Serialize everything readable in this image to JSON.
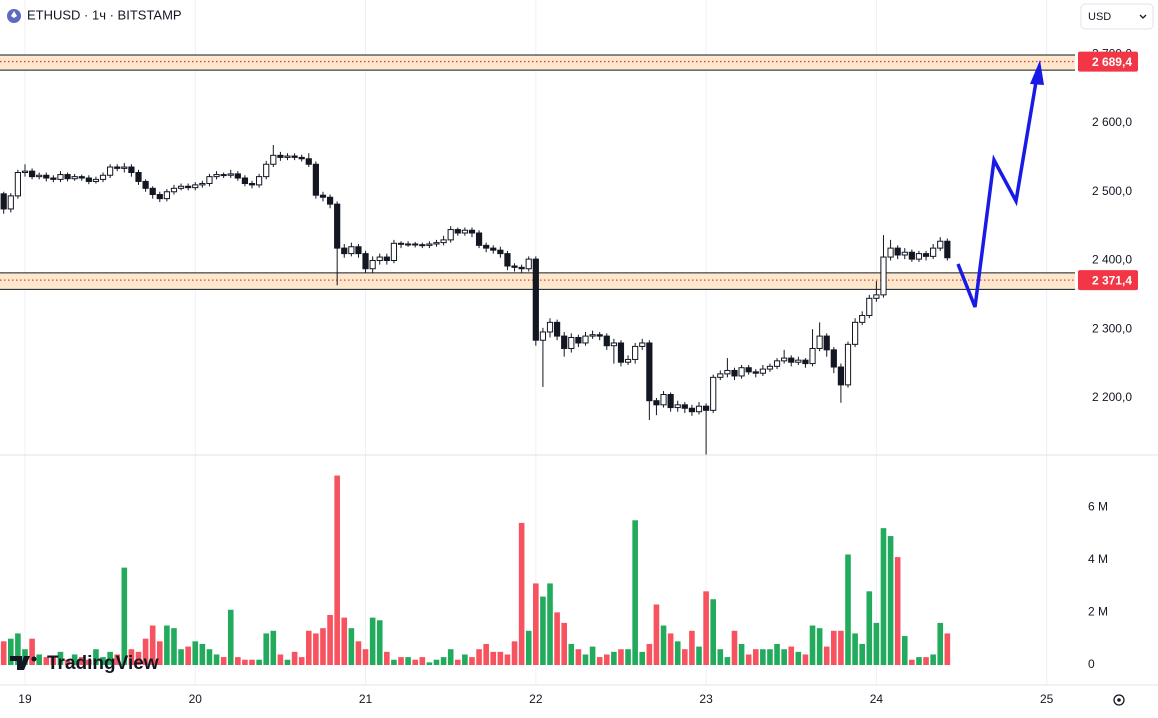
{
  "chart_data": {
    "type": "candlestick",
    "title": "ETHUSD · 1ч · BITSTAMP",
    "currency": "USD",
    "brand": "TradingView",
    "categories": [
      null,
      null,
      null,
      "19",
      null,
      null,
      null,
      null,
      null,
      null,
      null,
      null,
      null,
      null,
      null,
      null,
      null,
      null,
      null,
      null,
      null,
      null,
      null,
      null,
      null,
      null,
      null,
      "20",
      null,
      null,
      null,
      null,
      null,
      null,
      null,
      null,
      null,
      null,
      null,
      null,
      null,
      null,
      null,
      null,
      null,
      null,
      null,
      null,
      null,
      null,
      null,
      "21",
      null,
      null,
      null,
      null,
      null,
      null,
      null,
      null,
      null,
      null,
      null,
      null,
      null,
      null,
      null,
      null,
      null,
      null,
      null,
      null,
      null,
      null,
      null,
      "22",
      null,
      null,
      null,
      null,
      null,
      null,
      null,
      null,
      null,
      null,
      null,
      null,
      null,
      null,
      null,
      null,
      null,
      null,
      null,
      null,
      null,
      null,
      null,
      "23",
      null,
      null,
      null,
      null,
      null,
      null,
      null,
      null,
      null,
      null,
      null,
      null,
      null,
      null,
      null,
      null,
      null,
      null,
      null,
      null,
      null,
      null,
      null,
      "24",
      null,
      null,
      null,
      null,
      null,
      null,
      null,
      null,
      null,
      null,
      null,
      null,
      null,
      null,
      null,
      null,
      null,
      null,
      null,
      null,
      null,
      null,
      null,
      "25"
    ],
    "open": [
      2497,
      2475,
      2494,
      2528,
      2530,
      2522,
      2524,
      2520,
      2518,
      2525,
      2519,
      2522,
      2520,
      2515,
      2518,
      2524,
      2536,
      2534,
      2536,
      2528,
      2515,
      2505,
      2496,
      2490,
      2500,
      2505,
      2508,
      2506,
      2510,
      2512,
      2522,
      2525,
      2524,
      2526,
      2520,
      2512,
      2510,
      2522,
      2540,
      2553,
      2550,
      2552,
      2550,
      2548,
      2540,
      2495,
      2492,
      2482,
      2418,
      2410,
      2420,
      2410,
      2388,
      2400,
      2405,
      2400,
      2425,
      2424,
      2424,
      2423,
      2422,
      2424,
      2426,
      2430,
      2445,
      2440,
      2444,
      2440,
      2422,
      2418,
      2415,
      2410,
      2392,
      2390,
      2388,
      2402,
      2284,
      2296,
      2310,
      2290,
      2272,
      2288,
      2280,
      2290,
      2292,
      2290,
      2276,
      2280,
      2252,
      2256,
      2275,
      2280,
      2196,
      2190,
      2205,
      2186,
      2190,
      2185,
      2180,
      2188,
      2182,
      2230,
      2235,
      2240,
      2232,
      2244,
      2238,
      2236,
      2242,
      2246,
      2254,
      2258,
      2252,
      2255,
      2250,
      2272,
      2290,
      2270,
      2245,
      2219,
      2278,
      2310,
      2320,
      2345,
      2350,
      2405,
      2418,
      2408,
      2412,
      2402,
      2410,
      2406,
      2418,
      2428,
      null,
      null,
      null,
      null,
      null,
      null,
      null,
      null,
      null,
      null,
      null,
      null,
      null,
      null
    ],
    "high": [
      2500,
      2498,
      2532,
      2540,
      2534,
      2528,
      2528,
      2524,
      2530,
      2528,
      2526,
      2525,
      2524,
      2522,
      2528,
      2540,
      2540,
      2542,
      2540,
      2532,
      2518,
      2508,
      2500,
      2504,
      2510,
      2512,
      2512,
      2514,
      2516,
      2526,
      2530,
      2528,
      2532,
      2530,
      2524,
      2516,
      2526,
      2545,
      2568,
      2558,
      2556,
      2556,
      2554,
      2556,
      2544,
      2500,
      2496,
      2486,
      2424,
      2426,
      2424,
      2414,
      2406,
      2410,
      2410,
      2430,
      2428,
      2428,
      2427,
      2426,
      2428,
      2430,
      2436,
      2450,
      2448,
      2448,
      2448,
      2444,
      2426,
      2422,
      2420,
      2414,
      2396,
      2394,
      2406,
      2406,
      2302,
      2316,
      2314,
      2296,
      2294,
      2292,
      2296,
      2298,
      2296,
      2294,
      2286,
      2284,
      2262,
      2280,
      2286,
      2284,
      2200,
      2210,
      2208,
      2196,
      2194,
      2190,
      2194,
      2192,
      2234,
      2240,
      2258,
      2244,
      2248,
      2248,
      2242,
      2248,
      2250,
      2258,
      2270,
      2262,
      2260,
      2258,
      2300,
      2310,
      2294,
      2274,
      2250,
      2282,
      2316,
      2326,
      2350,
      2370,
      2437,
      2430,
      2422,
      2418,
      2416,
      2414,
      2414,
      2424,
      2434,
      2432,
      null,
      null,
      null,
      null,
      null,
      null,
      null,
      null,
      null,
      null,
      null,
      null,
      null,
      null
    ],
    "low": [
      2468,
      2470,
      2490,
      2522,
      2518,
      2518,
      2515,
      2514,
      2514,
      2515,
      2516,
      2516,
      2511,
      2512,
      2514,
      2520,
      2530,
      2528,
      2522,
      2510,
      2500,
      2490,
      2485,
      2486,
      2496,
      2502,
      2502,
      2502,
      2506,
      2508,
      2518,
      2520,
      2520,
      2516,
      2508,
      2505,
      2506,
      2518,
      2536,
      2545,
      2546,
      2546,
      2544,
      2536,
      2490,
      2486,
      2476,
      2364,
      2404,
      2406,
      2404,
      2382,
      2382,
      2394,
      2394,
      2396,
      2418,
      2420,
      2419,
      2418,
      2418,
      2420,
      2422,
      2426,
      2436,
      2436,
      2434,
      2418,
      2412,
      2410,
      2404,
      2386,
      2384,
      2382,
      2384,
      2276,
      2216,
      2288,
      2284,
      2260,
      2266,
      2274,
      2276,
      2286,
      2284,
      2270,
      2250,
      2246,
      2248,
      2250,
      2270,
      2168,
      2175,
      2186,
      2180,
      2180,
      2178,
      2174,
      2176,
      2117,
      2178,
      2226,
      2230,
      2226,
      2228,
      2234,
      2230,
      2232,
      2238,
      2242,
      2250,
      2246,
      2248,
      2244,
      2246,
      2268,
      2260,
      2236,
      2193,
      2215,
      2274,
      2306,
      2316,
      2340,
      2346,
      2400,
      2402,
      2402,
      2398,
      2398,
      2400,
      2402,
      2414,
      2400,
      null,
      null,
      null,
      null,
      null,
      null,
      null,
      null,
      null,
      null,
      null,
      null,
      null,
      null
    ],
    "close": [
      2475,
      2494,
      2528,
      2530,
      2522,
      2524,
      2520,
      2518,
      2525,
      2519,
      2522,
      2520,
      2515,
      2518,
      2524,
      2536,
      2534,
      2536,
      2528,
      2515,
      2505,
      2496,
      2490,
      2500,
      2505,
      2508,
      2506,
      2510,
      2512,
      2522,
      2525,
      2524,
      2526,
      2520,
      2512,
      2510,
      2522,
      2540,
      2553,
      2550,
      2552,
      2550,
      2548,
      2540,
      2495,
      2492,
      2482,
      2418,
      2410,
      2420,
      2410,
      2388,
      2400,
      2405,
      2400,
      2425,
      2424,
      2424,
      2423,
      2422,
      2424,
      2426,
      2430,
      2445,
      2440,
      2444,
      2440,
      2422,
      2418,
      2415,
      2410,
      2392,
      2390,
      2388,
      2402,
      2284,
      2296,
      2310,
      2290,
      2272,
      2288,
      2280,
      2290,
      2292,
      2290,
      2276,
      2280,
      2252,
      2256,
      2275,
      2280,
      2196,
      2190,
      2205,
      2186,
      2190,
      2185,
      2180,
      2188,
      2182,
      2230,
      2235,
      2240,
      2232,
      2244,
      2238,
      2236,
      2242,
      2246,
      2254,
      2258,
      2252,
      2255,
      2250,
      2272,
      2290,
      2270,
      2245,
      2219,
      2278,
      2310,
      2320,
      2345,
      2350,
      2405,
      2418,
      2408,
      2412,
      2402,
      2410,
      2406,
      2418,
      2428,
      2404,
      null,
      null,
      null,
      null,
      null,
      null,
      null,
      null,
      null,
      null,
      null,
      null,
      null,
      null
    ],
    "volume": [
      0.9,
      1.0,
      1.2,
      0.6,
      1.0,
      0.4,
      0.3,
      0.3,
      0.5,
      0.2,
      0.4,
      0.3,
      0.2,
      0.6,
      0.3,
      0.5,
      0.4,
      3.7,
      0.6,
      0.5,
      1.0,
      1.5,
      0.9,
      1.5,
      1.4,
      0.6,
      0.7,
      0.9,
      0.8,
      0.6,
      0.4,
      0.3,
      2.1,
      0.3,
      0.2,
      0.2,
      0.2,
      1.2,
      1.3,
      0.4,
      0.2,
      0.5,
      0.3,
      1.3,
      1.2,
      1.4,
      1.9,
      7.2,
      1.8,
      1.4,
      0.9,
      0.6,
      1.8,
      1.7,
      0.5,
      0.2,
      0.3,
      0.3,
      0.2,
      0.3,
      0.1,
      0.2,
      0.3,
      0.6,
      0.2,
      0.4,
      0.3,
      0.6,
      0.8,
      0.5,
      0.5,
      0.4,
      0.9,
      5.4,
      1.3,
      3.1,
      2.6,
      3.1,
      2.0,
      1.6,
      0.8,
      0.6,
      0.4,
      0.7,
      0.3,
      0.4,
      0.5,
      0.6,
      0.6,
      5.5,
      0.5,
      0.8,
      2.3,
      1.5,
      1.2,
      0.9,
      0.6,
      1.3,
      0.7,
      2.8,
      2.5,
      0.6,
      0.3,
      1.3,
      0.8,
      0.4,
      0.6,
      0.6,
      0.6,
      0.8,
      0.6,
      0.7,
      0.5,
      0.4,
      1.5,
      1.4,
      0.7,
      1.3,
      1.3,
      4.2,
      1.2,
      0.8,
      2.8,
      1.6,
      5.2,
      4.9,
      4.1,
      1.1,
      0.2,
      0.3,
      0.3,
      0.4,
      1.6,
      1.2,
      null,
      null,
      null,
      null,
      null,
      null,
      null,
      null,
      null,
      null,
      null,
      null,
      null,
      null
    ],
    "ylim": [
      2117,
      2779
    ],
    "yticks": [
      {
        "value": 2200,
        "label": "2 200,0"
      },
      {
        "value": 2300,
        "label": "2 300,0"
      },
      {
        "value": 2400,
        "label": "2 400,0"
      },
      {
        "value": 2500,
        "label": "2 500,0"
      },
      {
        "value": 2600,
        "label": "2 600,0"
      },
      {
        "value": 2700,
        "label": "2 700,0"
      }
    ],
    "volume_ylim": [
      -0.76,
      7.98
    ],
    "volume_yticks": [
      0,
      {
        "value": 2,
        "label": "2 M"
      },
      {
        "value": 4,
        "label": "4 M"
      },
      {
        "value": 6,
        "label": "6 M"
      }
    ],
    "up_color": "#22ab5c",
    "down_color": "#f7525f",
    "grid": "vertical",
    "levels": [
      {
        "value": 2689.4,
        "label": "2 689,4",
        "zone": [
          2677,
          2699
        ]
      },
      {
        "value": 2371.4,
        "label": "2 371,4",
        "zone": [
          2358,
          2382
        ]
      }
    ],
    "level_color": "#f23645",
    "zone_color": "#fde8cc"
  }
}
